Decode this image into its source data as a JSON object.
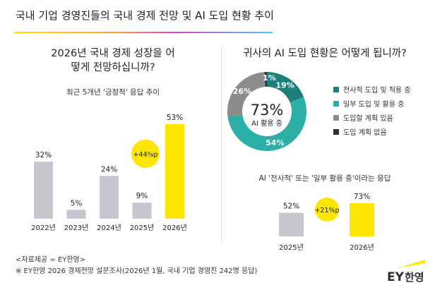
{
  "title": "국내 기업 경영진들의 국내 경제 전망 및 AI 도입 현황 추이",
  "colors": {
    "bar_gray": "#c6c6cf",
    "yellow": "#ffe600",
    "teal_dark": "#1e7f78",
    "teal": "#2bafa7",
    "gray": "#8c8c8c",
    "black": "#2e2e38"
  },
  "chart_data": [
    {
      "type": "bar",
      "title": "2026년 국내 경제 성장을 어떻게 전망하십니까?",
      "subtitle": "최근 5개년 '긍정적' 응답 추이",
      "categories": [
        "2022년",
        "2023년",
        "2024년",
        "2025년",
        "2026년"
      ],
      "values": [
        32,
        5,
        24,
        9,
        53
      ],
      "value_labels": [
        "32%",
        "5%",
        "24%",
        "9%",
        "53%"
      ],
      "highlight": "2026년",
      "annotation": "+44%p",
      "ylim": [
        0,
        60
      ]
    },
    {
      "type": "pie",
      "title": "귀사의 AI 도입 현황은 어떻게 됩니까?",
      "center_value": "73%",
      "center_label": "AI 활용 중",
      "slices": [
        {
          "name": "전사적 도입 및 적용 중",
          "value": 19,
          "label": "19%",
          "color": "#1e7f78"
        },
        {
          "name": "일부 도입 및 활용 중",
          "value": 54,
          "label": "54%",
          "color": "#2bafa7"
        },
        {
          "name": "도입할 계획 있음",
          "value": 26,
          "label": "26%",
          "color": "#8c8c8c"
        },
        {
          "name": "도입 계획 없음",
          "value": 1,
          "label": "1%",
          "color": "#2e2e38"
        }
      ],
      "legend": "right"
    },
    {
      "type": "bar",
      "title": "AI '전사적' 또는 '일부 활용 중'이라는 응답",
      "categories": [
        "2025년",
        "2026년"
      ],
      "values": [
        52,
        73
      ],
      "value_labels": [
        "52%",
        "73%"
      ],
      "annotation": "+21%p",
      "ylim": [
        0,
        80
      ]
    }
  ],
  "footer": {
    "source": "<자료제공 = EY한영>",
    "note": "※ EY한영 2026 경제전망 설문조사(2026년 1월, 국내 기업 경영진 242명 응답)",
    "logo_text": "EY한영"
  }
}
